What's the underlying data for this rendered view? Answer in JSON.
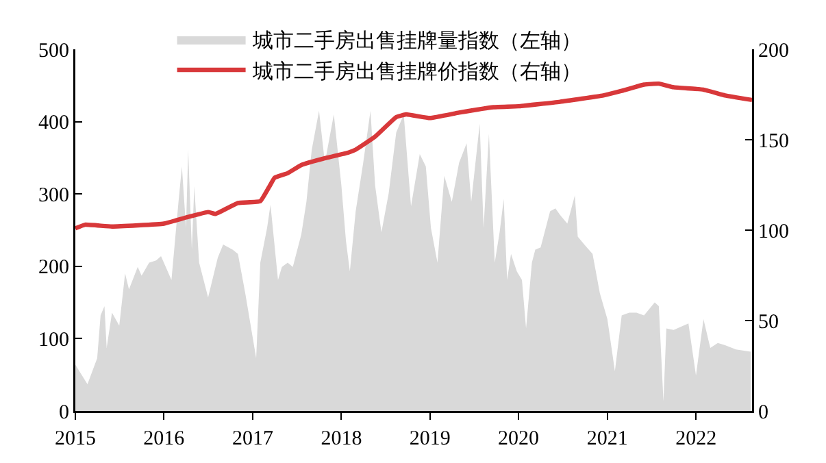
{
  "chart_data": {
    "type": "line",
    "legend": "top",
    "grid": false,
    "marker": "none",
    "xlim": [
      "2015-01-01",
      "2022-08-20"
    ],
    "xticks": [
      {
        "value": "2015-01-01",
        "label": "2015"
      },
      {
        "value": "2016-01-01",
        "label": "2016"
      },
      {
        "value": "2017-01-01",
        "label": "2017"
      },
      {
        "value": "2018-01-01",
        "label": "2018"
      },
      {
        "value": "2019-01-01",
        "label": "2019"
      },
      {
        "value": "2020-01-01",
        "label": "2020"
      },
      {
        "value": "2021-01-01",
        "label": "2021"
      },
      {
        "value": "2022-01-01",
        "label": "2022"
      }
    ],
    "ylim": [
      0,
      500
    ],
    "yticks": [
      0,
      100,
      200,
      300,
      400,
      500
    ],
    "y2lim": [
      0,
      200
    ],
    "y2ticks": [
      0,
      50,
      100,
      150,
      200
    ],
    "series": [
      {
        "name": "城市二手房出售挂牌量指数（左轴）",
        "type": "area",
        "color": "#d9d9d9",
        "x": [
          "2015-01-01",
          "2015-02-20",
          "2015-04-01",
          "2015-04-15",
          "2015-05-01",
          "2015-05-10",
          "2015-06-01",
          "2015-07-01",
          "2015-07-25",
          "2015-08-10",
          "2015-09-15",
          "2015-10-01",
          "2015-11-01",
          "2015-11-30",
          "2015-12-20",
          "2016-02-01",
          "2016-03-01",
          "2016-03-15",
          "2016-04-01",
          "2016-04-10",
          "2016-04-25",
          "2016-05-05",
          "2016-05-25",
          "2016-07-01",
          "2016-08-10",
          "2016-09-01",
          "2016-10-10",
          "2016-11-01",
          "2016-12-01",
          "2017-01-15",
          "2017-02-01",
          "2017-03-01",
          "2017-03-15",
          "2017-04-15",
          "2017-05-01",
          "2017-05-25",
          "2017-06-15",
          "2017-07-20",
          "2017-08-10",
          "2017-09-01",
          "2017-10-01",
          "2017-10-25",
          "2017-12-01",
          "2018-01-01",
          "2018-01-20",
          "2018-02-05",
          "2018-03-01",
          "2018-04-01",
          "2018-05-01",
          "2018-05-20",
          "2018-06-15",
          "2018-07-15",
          "2018-08-15",
          "2018-09-15",
          "2018-10-15",
          "2018-11-20",
          "2018-12-15",
          "2019-01-05",
          "2019-02-01",
          "2019-03-01",
          "2019-04-01",
          "2019-05-01",
          "2019-06-01",
          "2019-06-20",
          "2019-07-25",
          "2019-08-10",
          "2019-09-01",
          "2019-09-25",
          "2019-10-15",
          "2019-11-01",
          "2019-11-15",
          "2019-12-01",
          "2019-12-25",
          "2020-01-15",
          "2020-02-01",
          "2020-02-25",
          "2020-03-10",
          "2020-04-01",
          "2020-05-10",
          "2020-06-01",
          "2020-06-20",
          "2020-07-20",
          "2020-08-20",
          "2020-09-01",
          "2020-10-01",
          "2020-11-01",
          "2020-12-01",
          "2021-01-01",
          "2021-02-01",
          "2021-03-01",
          "2021-04-01",
          "2021-05-01",
          "2021-06-01",
          "2021-07-15",
          "2021-08-01",
          "2021-08-20",
          "2021-09-01",
          "2021-10-01",
          "2021-12-01",
          "2022-01-01",
          "2022-02-01",
          "2022-03-01",
          "2022-04-01",
          "2022-05-01",
          "2022-06-15",
          "2022-08-15"
        ],
        "values": [
          64,
          37,
          73,
          132,
          145,
          87,
          136,
          118,
          190,
          168,
          199,
          187,
          205,
          208,
          214,
          181,
          289,
          338,
          253,
          361,
          223,
          311,
          205,
          157,
          212,
          230,
          223,
          217,
          163,
          73,
          205,
          253,
          285,
          181,
          199,
          205,
          199,
          244,
          289,
          361,
          415,
          343,
          410,
          312,
          235,
          193,
          276,
          343,
          415,
          312,
          247,
          301,
          385,
          410,
          283,
          355,
          338,
          253,
          205,
          325,
          289,
          343,
          370,
          289,
          397,
          253,
          383,
          205,
          247,
          293,
          181,
          217,
          193,
          181,
          114,
          205,
          223,
          226,
          276,
          280,
          271,
          259,
          298,
          241,
          229,
          217,
          163,
          127,
          55,
          132,
          136,
          136,
          132,
          150,
          145,
          13,
          114,
          112,
          121,
          49,
          127,
          87,
          94,
          91,
          85,
          82
        ]
      },
      {
        "name": "城市二手房出售挂牌价指数（右轴）",
        "axis": "y2",
        "color": "#d8383a",
        "x": [
          "2015-01-01",
          "2015-02-10",
          "2015-06-01",
          "2016-01-01",
          "2016-04-01",
          "2016-07-01",
          "2016-08-01",
          "2016-11-01",
          "2017-02-01",
          "2017-03-10",
          "2017-04-01",
          "2017-05-25",
          "2017-07-20",
          "2017-11-01",
          "2018-02-01",
          "2018-03-01",
          "2018-05-20",
          "2018-08-15",
          "2018-09-25",
          "2019-01-01",
          "2019-05-01",
          "2019-09-20",
          "2020-01-01",
          "2020-06-20",
          "2020-12-15",
          "2021-03-01",
          "2021-06-01",
          "2021-08-01",
          "2021-10-01",
          "2022-02-01",
          "2022-05-01",
          "2022-08-20"
        ],
        "values": [
          101,
          103,
          102,
          103.6,
          107,
          110,
          109,
          115,
          116,
          124,
          129,
          131.5,
          136,
          140,
          143,
          144.5,
          151.7,
          162.5,
          164,
          162,
          165,
          168,
          168.5,
          171,
          174.5,
          177,
          180.5,
          181,
          179,
          177.7,
          174.5,
          172
        ]
      }
    ]
  }
}
